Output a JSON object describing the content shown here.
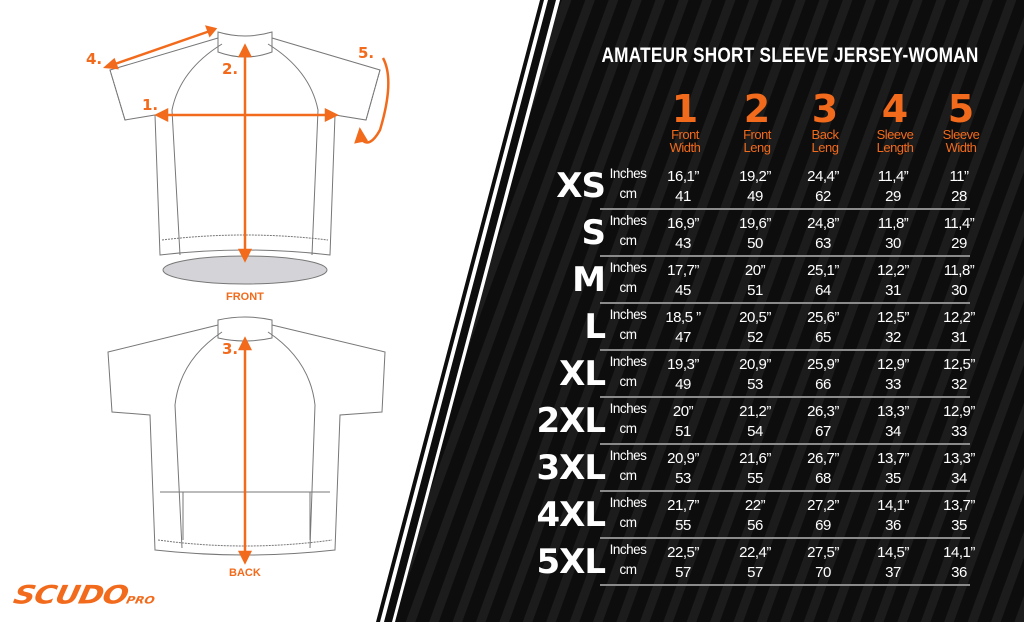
{
  "title": "AMATEUR SHORT SLEEVE JERSEY-WOMAN",
  "colors": {
    "accent": "#f26a1b",
    "panel": "#0d0d0d",
    "text": "#ffffff"
  },
  "columns": [
    {
      "num": "1",
      "label1": "Front",
      "label2": "Width"
    },
    {
      "num": "2",
      "label1": "Front",
      "label2": "Leng"
    },
    {
      "num": "3",
      "label1": "Back",
      "label2": "Leng"
    },
    {
      "num": "4",
      "label1": "Sleeve",
      "label2": "Length"
    },
    {
      "num": "5",
      "label1": "Sleeve",
      "label2": "Width"
    }
  ],
  "unit_labels": {
    "inches": "Inches",
    "cm": "cm"
  },
  "rows": [
    {
      "size": "XS",
      "inches": [
        "16,1”",
        "19,2”",
        "24,4”",
        "11,4”",
        "11”"
      ],
      "cm": [
        "41",
        "49",
        "62",
        "29",
        "28"
      ]
    },
    {
      "size": "S",
      "inches": [
        "16,9”",
        "19,6”",
        "24,8”",
        "11,8”",
        "11,4”"
      ],
      "cm": [
        "43",
        "50",
        "63",
        "30",
        "29"
      ]
    },
    {
      "size": "M",
      "inches": [
        "17,7”",
        "20”",
        "25,1”",
        "12,2”",
        "11,8”"
      ],
      "cm": [
        "45",
        "51",
        "64",
        "31",
        "30"
      ]
    },
    {
      "size": "L",
      "inches": [
        "18,5 ”",
        "20,5”",
        "25,6”",
        "12,5”",
        "12,2”"
      ],
      "cm": [
        "47",
        "52",
        "65",
        "32",
        "31"
      ]
    },
    {
      "size": "XL",
      "inches": [
        "19,3”",
        "20,9”",
        "25,9”",
        "12,9”",
        "12,5”"
      ],
      "cm": [
        "49",
        "53",
        "66",
        "33",
        "32"
      ]
    },
    {
      "size": "2XL",
      "inches": [
        "20”",
        "21,2”",
        "26,3”",
        "13,3”",
        "12,9”"
      ],
      "cm": [
        "51",
        "54",
        "67",
        "34",
        "33"
      ]
    },
    {
      "size": "3XL",
      "inches": [
        "20,9”",
        "21,6”",
        "26,7”",
        "13,7”",
        "13,3”"
      ],
      "cm": [
        "53",
        "55",
        "68",
        "35",
        "34"
      ]
    },
    {
      "size": "4XL",
      "inches": [
        "21,7”",
        "22”",
        "27,2”",
        "14,1”",
        "13,7”"
      ],
      "cm": [
        "55",
        "56",
        "69",
        "36",
        "35"
      ]
    },
    {
      "size": "5XL",
      "inches": [
        "22,5”",
        "22,4”",
        "27,5”",
        "14,5”",
        "14,1”"
      ],
      "cm": [
        "57",
        "57",
        "70",
        "37",
        "36"
      ]
    }
  ],
  "diagram": {
    "front_label": "FRONT",
    "back_label": "BACK",
    "markers": [
      "1.",
      "2.",
      "3.",
      "4.",
      "5."
    ]
  },
  "logo": {
    "main": "SCUDO",
    "sub": "PRO"
  }
}
